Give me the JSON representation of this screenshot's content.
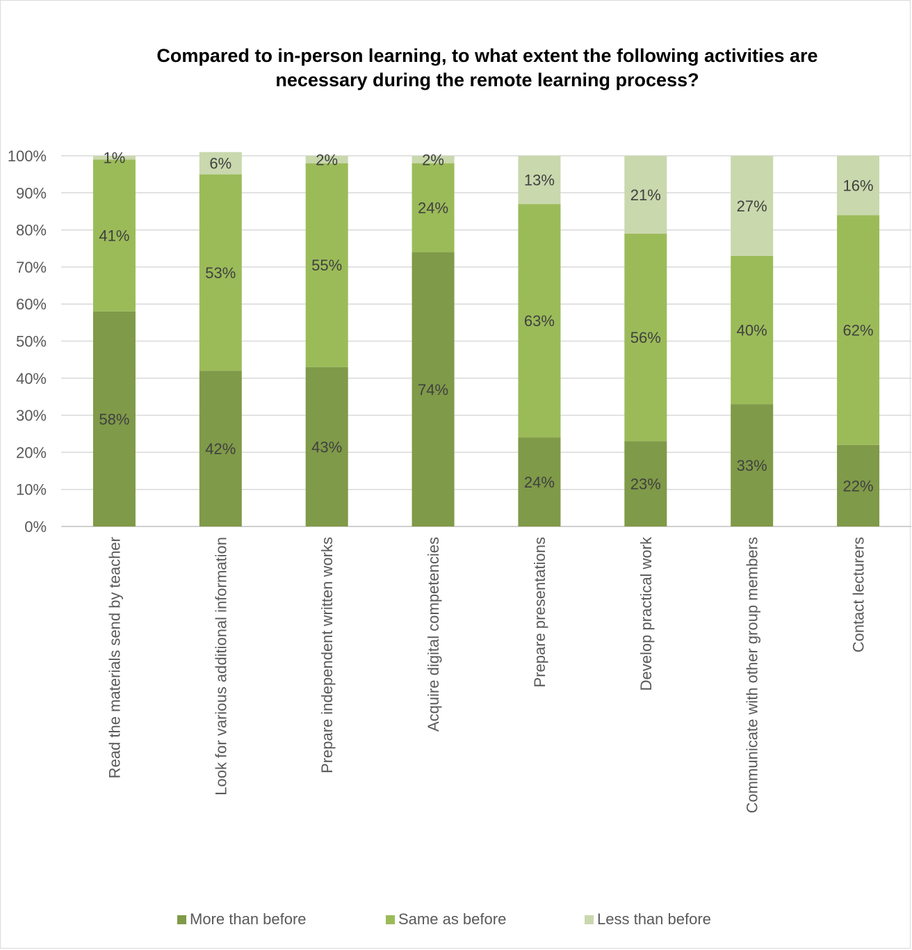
{
  "chart_data": {
    "type": "bar",
    "stacked": true,
    "percent_stacked": true,
    "title": "Compared to in-person learning, to what extent the following activities are necessary during the remote learning process?",
    "title_lines": [
      "Compared to in-person learning, to what extent the following activities are",
      "necessary during the remote learning process?"
    ],
    "xlabel": "",
    "ylabel": "",
    "ylim": [
      0,
      100
    ],
    "y_ticks": [
      "0%",
      "10%",
      "20%",
      "30%",
      "40%",
      "50%",
      "60%",
      "70%",
      "80%",
      "90%",
      "100%"
    ],
    "grid": true,
    "legend_position": "bottom",
    "categories": [
      "Read the materials send by teacher",
      "Look for various additional information",
      "Prepare independent written works",
      "Acquire digital competencies",
      "Prepare presentations",
      "Develop practical work",
      "Communicate with other group members",
      "Contact lecturers"
    ],
    "series": [
      {
        "name": "More than before",
        "color": "#7f9a48",
        "values": [
          58,
          42,
          43,
          74,
          24,
          23,
          33,
          22
        ],
        "labels": [
          "58%",
          "42%",
          "43%",
          "74%",
          "24%",
          "23%",
          "33%",
          "22%"
        ]
      },
      {
        "name": "Same as before",
        "color": "#9bbb59",
        "values": [
          41,
          53,
          55,
          24,
          63,
          56,
          40,
          62
        ],
        "labels": [
          "41%",
          "53%",
          "55%",
          "24%",
          "63%",
          "56%",
          "40%",
          "62%"
        ]
      },
      {
        "name": "Less than before",
        "color": "#c9d8ad",
        "values": [
          1,
          6,
          2,
          2,
          13,
          21,
          27,
          16
        ],
        "labels": [
          "1%",
          "6%",
          "2%",
          "2%",
          "13%",
          "21%",
          "27%",
          "16%"
        ]
      }
    ]
  }
}
